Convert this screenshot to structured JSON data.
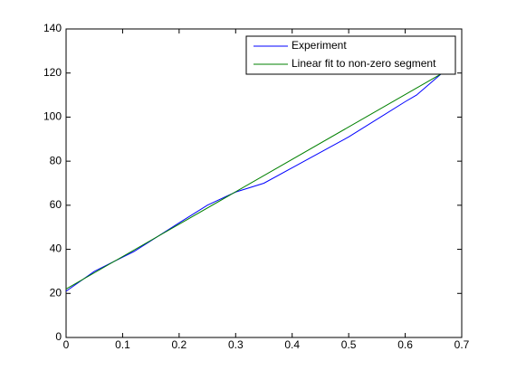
{
  "chart_data": {
    "type": "line",
    "series": [
      {
        "name": "Experiment",
        "color": "#0000ff",
        "x": [
          0,
          0.05,
          0.12,
          0.2,
          0.25,
          0.3,
          0.35,
          0.4,
          0.5,
          0.6,
          0.62,
          0.67
        ],
        "values": [
          21,
          30,
          39,
          52,
          60,
          66,
          70,
          77,
          91,
          107,
          110,
          121
        ]
      },
      {
        "name": "Linear fit to non-zero segment",
        "color": "#008000",
        "x": [
          0,
          0.68
        ],
        "values": [
          22,
          122
        ]
      }
    ],
    "xlim": [
      0,
      0.7
    ],
    "xticks": [
      0,
      0.1,
      0.2,
      0.3,
      0.4,
      0.5,
      0.6,
      0.7
    ],
    "ylim": [
      0,
      140
    ],
    "yticks": [
      0,
      20,
      40,
      60,
      80,
      100,
      120,
      140
    ],
    "legend": "northeast"
  }
}
